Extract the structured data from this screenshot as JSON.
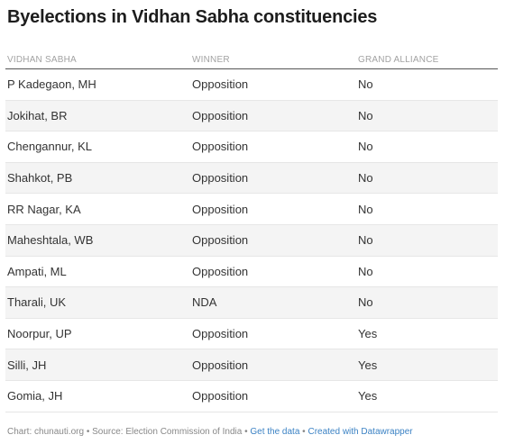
{
  "title": "Byelections in Vidhan Sabha constituencies",
  "chart_data": {
    "type": "table",
    "columns": [
      "VIDHAN SABHA",
      "WINNER",
      "GRAND ALLIANCE"
    ],
    "rows": [
      [
        "P Kadegaon, MH",
        "Opposition",
        "No"
      ],
      [
        "Jokihat, BR",
        "Opposition",
        "No"
      ],
      [
        "Chengannur, KL",
        "Opposition",
        "No"
      ],
      [
        "Shahkot, PB",
        "Opposition",
        "No"
      ],
      [
        "RR Nagar, KA",
        "Opposition",
        "No"
      ],
      [
        "Maheshtala, WB",
        "Opposition",
        "No"
      ],
      [
        "Ampati, ML",
        "Opposition",
        "No"
      ],
      [
        "Tharali, UK",
        "NDA",
        "No"
      ],
      [
        "Noorpur, UP",
        "Opposition",
        "Yes"
      ],
      [
        "Silli, JH",
        "Opposition",
        "Yes"
      ],
      [
        "Gomia, JH",
        "Opposition",
        "Yes"
      ]
    ]
  },
  "footer": {
    "source": "Chart: chunauti.org • Source: Election Commission of India • ",
    "get_data": "Get the data",
    "sep": " • ",
    "created_with": "Created with Datawrapper"
  },
  "colors": {
    "header_text": "#a2a2a2",
    "alt_row_bg": "#f4f4f4",
    "link": "#3b82c4"
  }
}
